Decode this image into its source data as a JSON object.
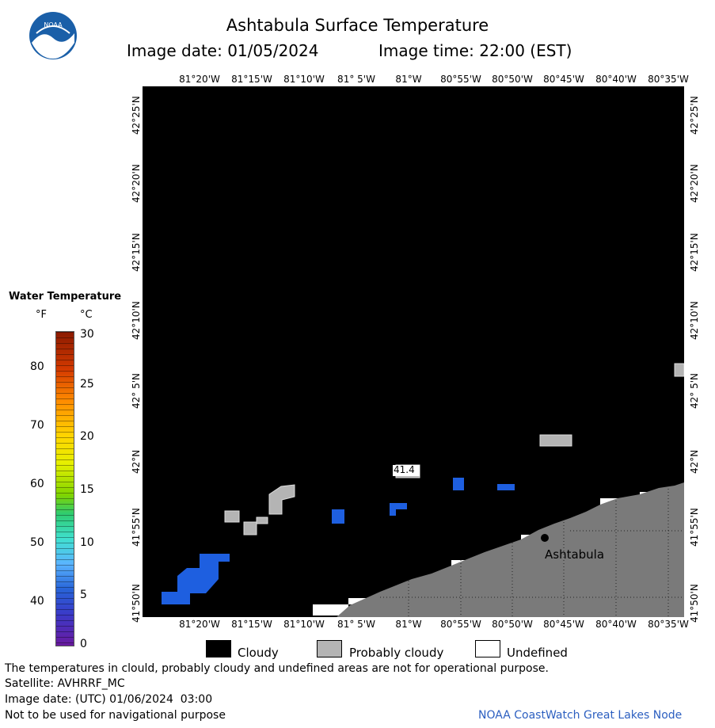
{
  "header": {
    "title": "Ashtabula Surface Temperature",
    "image_date_label": "Image date: 01/05/2024",
    "image_time_label": "Image time: 22:00 (EST)",
    "logo_text": "NOAA"
  },
  "map": {
    "x_ticks": [
      "81°20'W",
      "81°15'W",
      "81°10'W",
      "81° 5'W",
      "81°W",
      "80°55'W",
      "80°50'W",
      "80°45'W",
      "80°40'W",
      "80°35'W"
    ],
    "y_ticks": [
      "42°25'N",
      "42°20'N",
      "42°15'N",
      "42°10'N",
      "42° 5'N",
      "42°N",
      "41°55'N",
      "41°50'N"
    ],
    "city_label": "Ashtabula",
    "buoy_label": "41.4"
  },
  "colorbar": {
    "title": "Water Temperature",
    "unit_f": "°F",
    "unit_c": "°C",
    "f_ticks": [
      "80",
      "70",
      "60",
      "50",
      "40"
    ],
    "c_ticks": [
      "30",
      "25",
      "20",
      "15",
      "10",
      "5",
      "0"
    ]
  },
  "legend": {
    "cloudy": "Cloudy",
    "probably_cloudy": "Probably cloudy",
    "undefined": "Undefined"
  },
  "footer": {
    "disclaimer": "The temperatures in clould, probably cloudy and undefined areas are not for operational purpose.",
    "satellite": "Satellite: AVHRRF_MC",
    "utc_date": "Image date: (UTC) 01/06/2024  03:00",
    "navigation": "Not to be used for navigational purpose",
    "credit": "NOAA CoastWatch Great Lakes Node"
  },
  "colors": {
    "cloudy": "#000000",
    "probably_cloudy": "#b4b4b4",
    "land": "#7a7a7a",
    "water_warm_pixel": "#1e5fe0",
    "credit_text": "#2c5fc0"
  }
}
